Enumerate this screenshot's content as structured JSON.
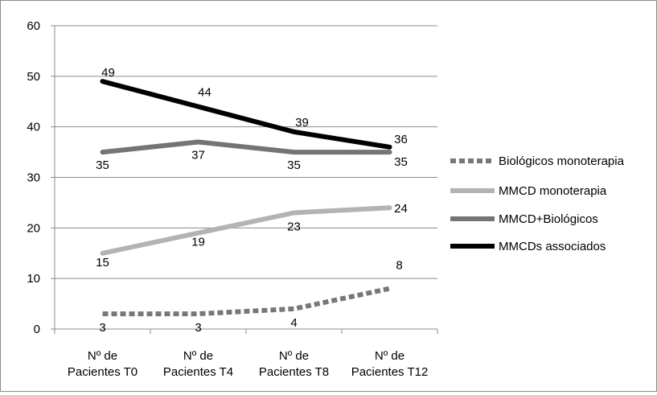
{
  "chart_data": {
    "type": "line",
    "categories": [
      "Nº de Pacientes T0",
      "Nº de Pacientes T4",
      "Nº de Pacientes T8",
      "Nº de Pacientes T12"
    ],
    "category_lines": [
      [
        "Nº de",
        "Pacientes T0"
      ],
      [
        "Nº de",
        "Pacientes T4"
      ],
      [
        "Nº de",
        "Pacientes T8"
      ],
      [
        "Nº de",
        "Pacientes T12"
      ]
    ],
    "ylim": [
      0,
      60
    ],
    "yticks": [
      "0",
      "10",
      "20",
      "30",
      "40",
      "50",
      "60"
    ],
    "ytick_values": [
      0,
      10,
      20,
      30,
      40,
      50,
      60
    ],
    "grid": true,
    "legend_position": "right",
    "series": [
      {
        "name": "Biológicos monoterapia",
        "values": [
          3,
          3,
          4,
          8
        ],
        "labels": [
          "3",
          "3",
          "4",
          "8"
        ],
        "color": "#777777",
        "dashed": true
      },
      {
        "name": "MMCD monoterapia",
        "values": [
          15,
          19,
          23,
          24
        ],
        "labels": [
          "15",
          "19",
          "23",
          "24"
        ],
        "color": "#b3b3b3",
        "dashed": false
      },
      {
        "name": "MMCD+Biológicos",
        "values": [
          35,
          37,
          35,
          35
        ],
        "labels": [
          "35",
          "37",
          "35",
          "35"
        ],
        "color": "#747474",
        "dashed": false
      },
      {
        "name": "MMCDs associados",
        "values": [
          49,
          44,
          39,
          36
        ],
        "labels": [
          "49",
          "44",
          "39",
          "36"
        ],
        "color": "#000000",
        "dashed": false
      }
    ]
  }
}
